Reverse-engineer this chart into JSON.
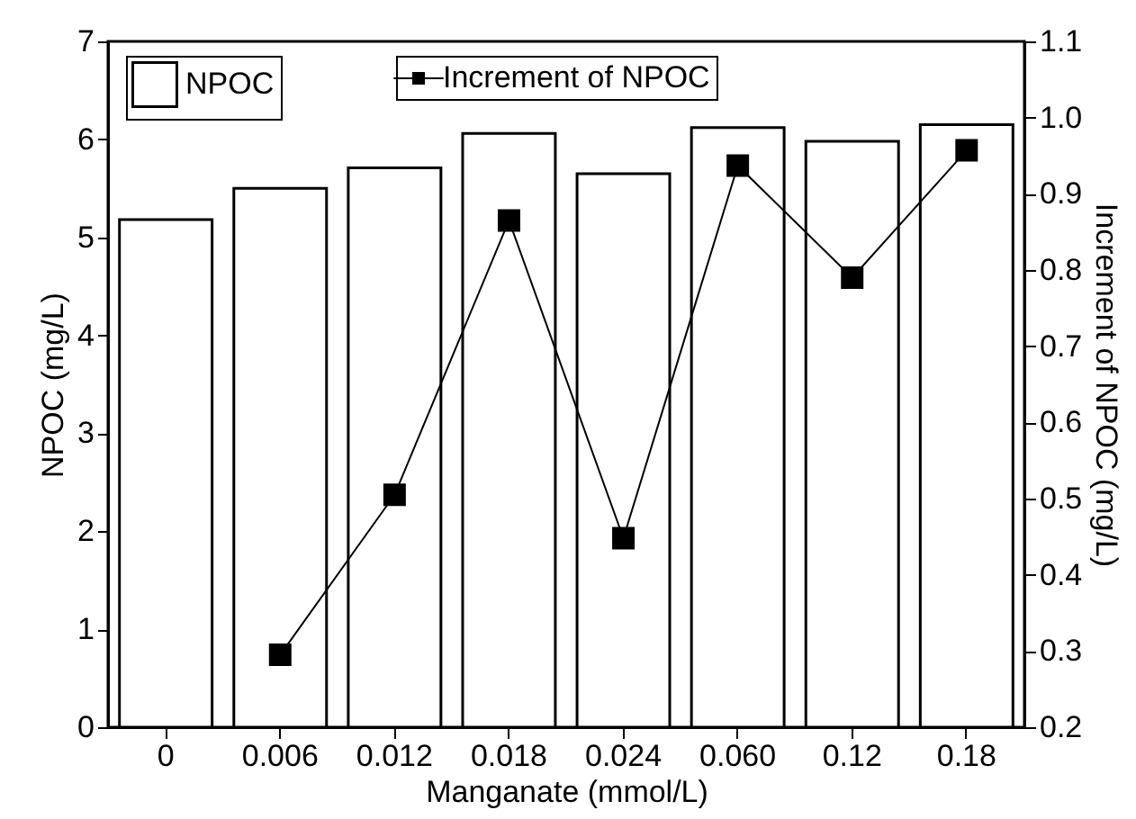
{
  "chart_data": {
    "type": "bar",
    "xlabel": "Manganate (mmol/L)",
    "ylabel": "NPOC (mg/L)",
    "y2label": "Increment of NPOC (mg/L)",
    "categories": [
      "0",
      "0.006",
      "0.012",
      "0.018",
      "0.024",
      "0.060",
      "0.12",
      "0.18"
    ],
    "series": [
      {
        "name": "NPOC",
        "color": "#ffffff",
        "values": [
          5.18,
          5.5,
          5.71,
          6.06,
          5.65,
          6.12,
          5.98,
          6.15
        ]
      },
      {
        "name": "Increment of NPOC",
        "type": "line",
        "axis": "y2",
        "color": "#000000",
        "values": [
          null,
          0.295,
          0.505,
          0.865,
          0.448,
          0.937,
          0.79,
          0.957
        ]
      }
    ],
    "ylim": [
      0,
      7
    ],
    "yticks": [
      0,
      1,
      2,
      3,
      4,
      5,
      6,
      7
    ],
    "y2lim": [
      0.2,
      1.1
    ],
    "y2ticks": [
      0.2,
      0.3,
      0.4,
      0.5,
      0.6,
      0.7,
      0.8,
      0.9,
      {
        "value": 1,
        "label": "1.0"
      },
      1.1
    ],
    "legend": "top left",
    "marker": "square",
    "grid": false
  }
}
